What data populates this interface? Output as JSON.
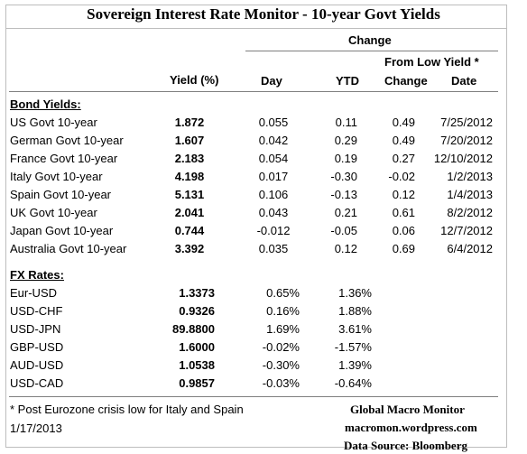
{
  "title": "Sovereign Interest Rate Monitor - 10-year Govt Yields",
  "headers": {
    "change": "Change",
    "from_low": "From Low Yield  *",
    "yield": "Yield (%)",
    "day": "Day",
    "ytd": "YTD",
    "low_change": "Change",
    "low_date": "Date"
  },
  "bond_section_label": "Bond Yields:",
  "bonds": [
    {
      "name": "US Govt 10-year",
      "yield": "1.872",
      "day": "0.055",
      "ytd": "0.11",
      "low_change": "0.49",
      "low_date": "7/25/2012"
    },
    {
      "name": "German Govt 10-year",
      "yield": "1.607",
      "day": "0.042",
      "ytd": "0.29",
      "low_change": "0.49",
      "low_date": "7/20/2012"
    },
    {
      "name": "France Govt 10-year",
      "yield": "2.183",
      "day": "0.054",
      "ytd": "0.19",
      "low_change": "0.27",
      "low_date": "12/10/2012"
    },
    {
      "name": "Italy Govt 10-year",
      "yield": "4.198",
      "day": "0.017",
      "ytd": "-0.30",
      "low_change": "-0.02",
      "low_date": "1/2/2013"
    },
    {
      "name": "Spain Govt 10-year",
      "yield": "5.131",
      "day": "0.106",
      "ytd": "-0.13",
      "low_change": "0.12",
      "low_date": "1/4/2013"
    },
    {
      "name": "UK Govt 10-year",
      "yield": "2.041",
      "day": "0.043",
      "ytd": "0.21",
      "low_change": "0.61",
      "low_date": "8/2/2012"
    },
    {
      "name": "Japan Govt 10-year",
      "yield": "0.744",
      "day": "-0.012",
      "ytd": "-0.05",
      "low_change": "0.06",
      "low_date": "12/7/2012"
    },
    {
      "name": "Australia Govt 10-year",
      "yield": "3.392",
      "day": "0.035",
      "ytd": "0.12",
      "low_change": "0.69",
      "low_date": "6/4/2012"
    }
  ],
  "fx_section_label": "FX Rates:",
  "fx": [
    {
      "name": "Eur-USD",
      "rate": "1.3373",
      "day": "0.65%",
      "ytd": "1.36%"
    },
    {
      "name": "USD-CHF",
      "rate": "0.9326",
      "day": "0.16%",
      "ytd": "1.88%"
    },
    {
      "name": "USD-JPN",
      "rate": "89.8800",
      "day": "1.69%",
      "ytd": "3.61%"
    },
    {
      "name": "GBP-USD",
      "rate": "1.6000",
      "day": "-0.02%",
      "ytd": "-1.57%"
    },
    {
      "name": "AUD-USD",
      "rate": "1.0538",
      "day": "-0.30%",
      "ytd": "1.39%"
    },
    {
      "name": "USD-CAD",
      "rate": "0.9857",
      "day": "-0.03%",
      "ytd": "-0.64%"
    }
  ],
  "footnote": "*  Post Eurozone crisis low for Italy and Spain",
  "date": "1/17/2013",
  "brand": "Global Macro Monitor",
  "website": "macromon.wordpress.com",
  "source": "Data Source:  Bloomberg"
}
